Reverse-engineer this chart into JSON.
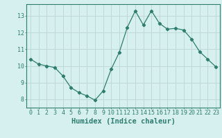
{
  "x": [
    0,
    1,
    2,
    3,
    4,
    5,
    6,
    7,
    8,
    9,
    10,
    11,
    12,
    13,
    14,
    15,
    16,
    17,
    18,
    19,
    20,
    21,
    22,
    23
  ],
  "y": [
    10.4,
    10.1,
    10.0,
    9.9,
    9.4,
    8.7,
    8.4,
    8.2,
    7.95,
    8.5,
    9.8,
    10.8,
    12.3,
    13.3,
    12.45,
    13.3,
    12.55,
    12.2,
    12.25,
    12.15,
    11.6,
    10.85,
    10.4,
    9.95
  ],
  "line_color": "#2e7d6e",
  "marker": "D",
  "marker_size": 2.2,
  "bg_color": "#d6f0f0",
  "grid_color": "#c0d8d8",
  "tick_color": "#2e7d6e",
  "xlabel": "Humidex (Indice chaleur)",
  "xlabel_fontsize": 7.5,
  "ylim": [
    7.5,
    13.7
  ],
  "yticks": [
    8,
    9,
    10,
    11,
    12,
    13
  ],
  "xticks": [
    0,
    1,
    2,
    3,
    4,
    5,
    6,
    7,
    8,
    9,
    10,
    11,
    12,
    13,
    14,
    15,
    16,
    17,
    18,
    19,
    20,
    21,
    22,
    23
  ],
  "tick_fontsize": 6.0,
  "linewidth": 0.9
}
